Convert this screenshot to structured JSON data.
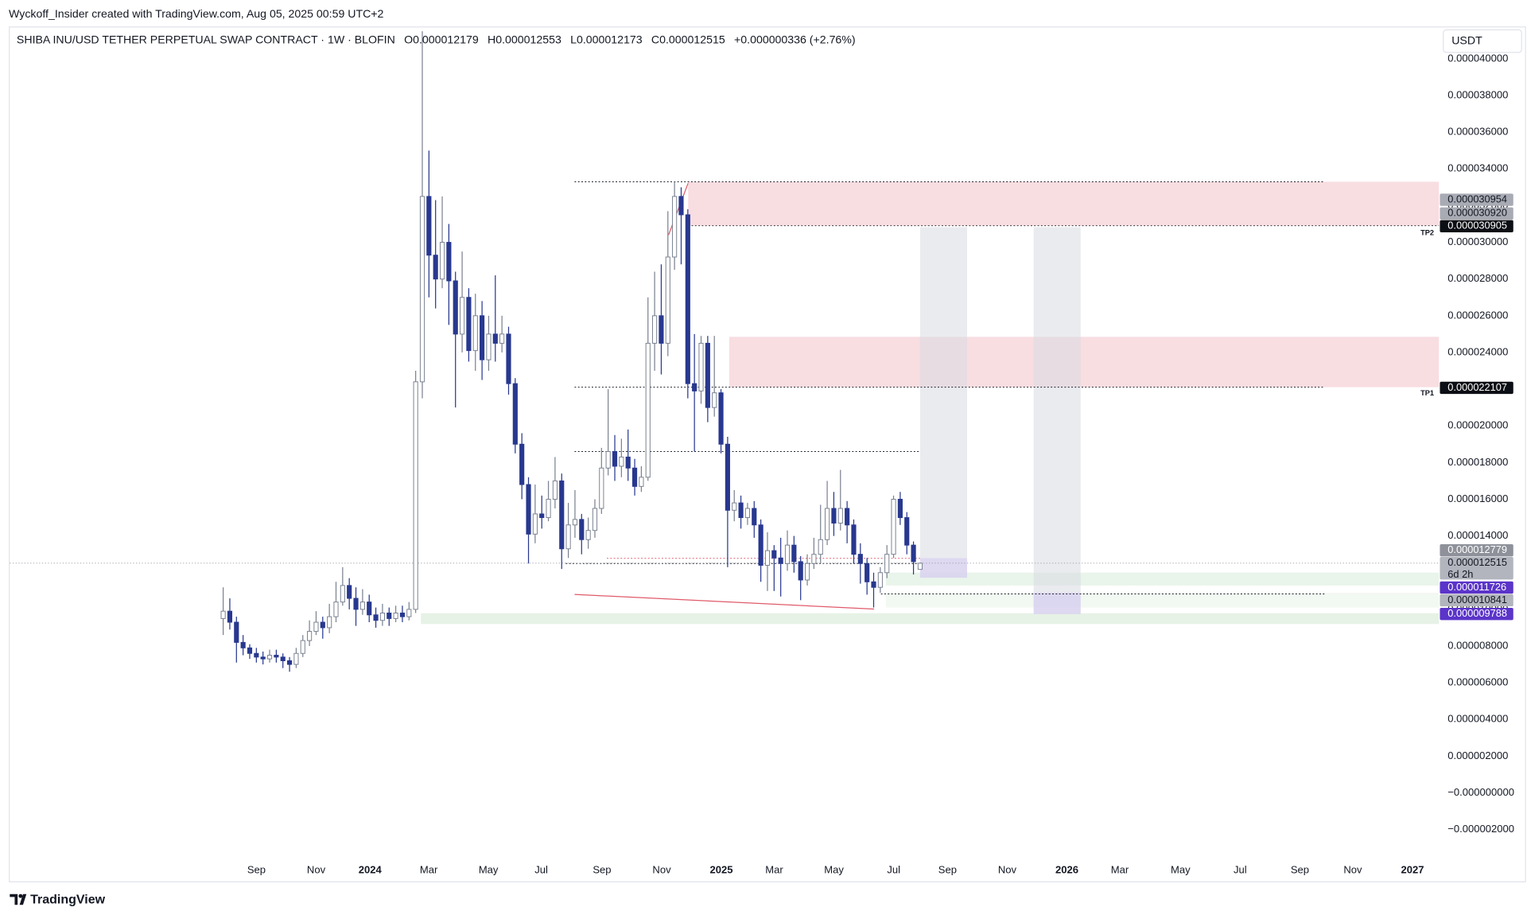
{
  "header": {
    "credit": "Wyckoff_Insider created with TradingView.com, Aug 05, 2025 00:59 UTC+2",
    "symbol": "SHIBA INU/USD TETHER PERPETUAL SWAP CONTRACT · 1W · BLOFIN",
    "ohlc_letters": [
      "O",
      "H",
      "L",
      "C"
    ],
    "ohlc_values": [
      "0.000012179",
      "0.000012553",
      "0.000012173",
      "0.000012515"
    ],
    "change": "+0.000000336 (+2.76%)",
    "currency": "USDT",
    "brand": "TradingView"
  },
  "chart_data": {
    "type": "candlestick",
    "up_color": "#ffffff",
    "up_border": "#7b8290",
    "down_color": "#28388f",
    "open": [
      9.5e-06,
      9.9e-06,
      9.3e-06,
      8.2e-06,
      7.9e-06,
      7.6e-06,
      7.4e-06,
      7.3e-06,
      7.5e-06,
      7.4e-06,
      7.2e-06,
      7e-06,
      7.6e-06,
      8.3e-06,
      8.8e-06,
      9.3e-06,
      9e-06,
      9.6e-06,
      1.04e-05,
      1.13e-05,
      1.06e-05,
      1e-05,
      1.04e-05,
      9.7e-06,
      9.4e-06,
      9.8e-06,
      9.5e-06,
      9.8e-06,
      9.6e-06,
      1e-05,
      2.24e-05,
      3.25e-05,
      2.93e-05,
      2.8e-05,
      3e-05,
      2.79e-05,
      2.5e-05,
      2.7e-05,
      2.41e-05,
      2.6e-05,
      2.36e-05,
      2.5e-05,
      2.45e-05,
      2.5e-05,
      2.23e-05,
      1.9e-05,
      1.68e-05,
      1.41e-05,
      1.52e-05,
      1.5e-05,
      1.6e-05,
      1.7e-05,
      1.33e-05,
      1.46e-05,
      1.49e-05,
      1.38e-05,
      1.43e-05,
      1.55e-05,
      1.77e-05,
      1.86e-05,
      1.78e-05,
      1.83e-05,
      1.77e-05,
      1.67e-05,
      1.72e-05,
      2.45e-05,
      2.6e-05,
      2.45e-05,
      2.92e-05,
      3.25e-05,
      3.15e-05,
      2.23e-05,
      2.19e-05,
      2.45e-05,
      2.1e-05,
      2.18e-05,
      1.9e-05,
      1.54e-05,
      1.58e-05,
      1.5e-05,
      1.55e-05,
      1.46e-05,
      1.24e-05,
      1.32e-05,
      1.28e-05,
      1.25e-05,
      1.35e-05,
      1.26e-05,
      1.16e-05,
      1.25e-05,
      1.3e-05,
      1.38e-05,
      1.55e-05,
      1.47e-05,
      1.55e-05,
      1.46e-05,
      1.3e-05,
      1.25e-05,
      1.15e-05,
      1.12e-05,
      1.2e-05,
      1.3e-05,
      1.6e-05,
      1.5e-05,
      1.35e-05,
      1.2179e-05
    ],
    "high": [
      1.12e-05,
      1.06e-05,
      9.6e-06,
      8.6e-06,
      8.1e-06,
      7.9e-06,
      7.7e-06,
      7.8e-06,
      7.8e-06,
      7.6e-06,
      7.4e-06,
      7.9e-06,
      8.6e-06,
      9.4e-06,
      9.9e-06,
      9.6e-06,
      1.03e-05,
      1.15e-05,
      1.23e-05,
      1.17e-05,
      1.12e-05,
      1.11e-05,
      1.08e-05,
      1.01e-05,
      1.03e-05,
      1.01e-05,
      1.02e-05,
      1.02e-05,
      1.04e-05,
      2.3e-05,
      4.15e-05,
      3.5e-05,
      3.23e-05,
      3.25e-05,
      3.1e-05,
      2.84e-05,
      2.95e-05,
      2.75e-05,
      2.72e-05,
      2.68e-05,
      2.6e-05,
      2.82e-05,
      2.6e-05,
      2.54e-05,
      2.26e-05,
      1.96e-05,
      1.72e-05,
      1.68e-05,
      1.62e-05,
      1.7e-05,
      1.83e-05,
      1.74e-05,
      1.58e-05,
      1.65e-05,
      1.52e-05,
      1.5e-05,
      1.6e-05,
      1.88e-05,
      2.2e-05,
      1.95e-05,
      1.93e-05,
      1.98e-05,
      1.82e-05,
      1.78e-05,
      2.7e-05,
      2.84e-05,
      2.88e-05,
      3.17e-05,
      3.33e-05,
      3.3e-05,
      3.18e-05,
      2.5e-05,
      2.49e-05,
      2.49e-05,
      2.49e-05,
      2.2e-05,
      1.94e-05,
      1.65e-05,
      1.62e-05,
      1.58e-05,
      1.59e-05,
      1.49e-05,
      1.42e-05,
      1.35e-05,
      1.39e-05,
      1.43e-05,
      1.4e-05,
      1.29e-05,
      1.3e-05,
      1.39e-05,
      1.57e-05,
      1.7e-05,
      1.64e-05,
      1.76e-05,
      1.59e-05,
      1.49e-05,
      1.36e-05,
      1.28e-05,
      1.2e-05,
      1.23e-05,
      1.35e-05,
      1.62e-05,
      1.64e-05,
      1.53e-05,
      1.37e-05,
      1.2553e-05
    ],
    "low": [
      8.6e-06,
      8.9e-06,
      7.1e-06,
      7.5e-06,
      7.3e-06,
      7.1e-06,
      7e-06,
      7.1e-06,
      7.1e-06,
      6.8e-06,
      6.6e-06,
      6.8e-06,
      7.4e-06,
      8e-06,
      8.6e-06,
      8.4e-06,
      8.7e-06,
      9.3e-06,
      1.02e-05,
      1e-05,
      9.1e-06,
      9.7e-06,
      9.3e-06,
      9e-06,
      9.1e-06,
      9.1e-06,
      9.3e-06,
      9.3e-06,
      9.4e-06,
      9.8e-06,
      2.15e-05,
      2.7e-05,
      2.64e-05,
      2.75e-05,
      2.55e-05,
      2.1e-05,
      2.4e-05,
      2.35e-05,
      2.3e-05,
      2.25e-05,
      2.3e-05,
      2.35e-05,
      2.4e-05,
      2.17e-05,
      1.85e-05,
      1.6e-05,
      1.25e-05,
      1.36e-05,
      1.44e-05,
      1.48e-05,
      1.55e-05,
      1.22e-05,
      1.28e-05,
      1.39e-05,
      1.3e-05,
      1.33e-05,
      1.39e-05,
      1.52e-05,
      1.73e-05,
      1.7e-05,
      1.72e-05,
      1.7e-05,
      1.62e-05,
      1.64e-05,
      1.7e-05,
      2.3e-05,
      2.28e-05,
      2.38e-05,
      2.85e-05,
      2.88e-05,
      2.15e-05,
      1.86e-05,
      2.12e-05,
      2.02e-05,
      2.05e-05,
      1.85e-05,
      1.23e-05,
      1.48e-05,
      1.44e-05,
      1.46e-05,
      1.39e-05,
      1.15e-05,
      1.1e-05,
      1.1e-05,
      1.07e-05,
      1.21e-05,
      1.2e-05,
      1.05e-05,
      1.13e-05,
      1.22e-05,
      1.25e-05,
      1.35e-05,
      1.4e-05,
      1.43e-05,
      1.36e-05,
      1.25e-05,
      1.14e-05,
      1.08e-05,
      1.01e-05,
      1.09e-05,
      1.17e-05,
      1.28e-05,
      1.46e-05,
      1.3e-05,
      1.19e-05,
      1.2173e-05
    ],
    "close": [
      9.9e-06,
      9.3e-06,
      8.2e-06,
      7.9e-06,
      7.6e-06,
      7.4e-06,
      7.3e-06,
      7.5e-06,
      7.4e-06,
      7.2e-06,
      7e-06,
      7.6e-06,
      8.3e-06,
      8.8e-06,
      9.3e-06,
      9e-06,
      9.6e-06,
      1.04e-05,
      1.13e-05,
      1.06e-05,
      1e-05,
      1.04e-05,
      9.7e-06,
      9.4e-06,
      9.8e-06,
      9.5e-06,
      9.8e-06,
      9.6e-06,
      1e-05,
      2.24e-05,
      3.25e-05,
      2.93e-05,
      2.8e-05,
      3e-05,
      2.79e-05,
      2.5e-05,
      2.7e-05,
      2.41e-05,
      2.6e-05,
      2.36e-05,
      2.5e-05,
      2.45e-05,
      2.5e-05,
      2.23e-05,
      1.9e-05,
      1.68e-05,
      1.41e-05,
      1.52e-05,
      1.5e-05,
      1.6e-05,
      1.7e-05,
      1.33e-05,
      1.46e-05,
      1.49e-05,
      1.38e-05,
      1.43e-05,
      1.55e-05,
      1.77e-05,
      1.86e-05,
      1.78e-05,
      1.83e-05,
      1.77e-05,
      1.67e-05,
      1.72e-05,
      2.45e-05,
      2.6e-05,
      2.45e-05,
      2.92e-05,
      3.25e-05,
      3.15e-05,
      2.23e-05,
      2.19e-05,
      2.45e-05,
      2.1e-05,
      2.18e-05,
      1.9e-05,
      1.54e-05,
      1.58e-05,
      1.5e-05,
      1.55e-05,
      1.46e-05,
      1.24e-05,
      1.32e-05,
      1.28e-05,
      1.25e-05,
      1.35e-05,
      1.26e-05,
      1.16e-05,
      1.25e-05,
      1.3e-05,
      1.38e-05,
      1.55e-05,
      1.47e-05,
      1.55e-05,
      1.46e-05,
      1.3e-05,
      1.25e-05,
      1.15e-05,
      1.12e-05,
      1.2e-05,
      1.3e-05,
      1.6e-05,
      1.5e-05,
      1.35e-05,
      1.26e-05,
      1.2515e-05
    ],
    "ylim": [
      -4.82e-06,
      4.187e-05
    ],
    "yticks": [
      {
        "value": 4e-05,
        "label": "0.000040000"
      },
      {
        "value": 3.8e-05,
        "label": "0.000038000"
      },
      {
        "value": 3.6e-05,
        "label": "0.000036000"
      },
      {
        "value": 3.4e-05,
        "label": "0.000034000"
      },
      {
        "value": 3.2e-05,
        "label": "0.000032000"
      },
      {
        "value": 3e-05,
        "label": "0.000030000"
      },
      {
        "value": 2.8e-05,
        "label": "0.000028000"
      },
      {
        "value": 2.6e-05,
        "label": "0.000026000"
      },
      {
        "value": 2.4e-05,
        "label": "0.000024000"
      },
      {
        "value": 2.2e-05,
        "label": "0.000022000"
      },
      {
        "value": 2e-05,
        "label": "0.000020000"
      },
      {
        "value": 1.8e-05,
        "label": "0.000018000"
      },
      {
        "value": 1.6e-05,
        "label": "0.000016000"
      },
      {
        "value": 1.4e-05,
        "label": "0.000014000"
      },
      {
        "value": 1.2e-05,
        "label": "0.000012000"
      },
      {
        "value": 1e-05,
        "label": "0.000010000"
      },
      {
        "value": 8e-06,
        "label": "0.000008000"
      },
      {
        "value": 6e-06,
        "label": "0.000006000"
      },
      {
        "value": 4e-06,
        "label": "0.000004000"
      },
      {
        "value": 2e-06,
        "label": "0.000002000"
      },
      {
        "value": 0,
        "label": "−0.000000000"
      },
      {
        "value": -2e-06,
        "label": "−0.000002000"
      }
    ],
    "grid": false,
    "x_labels": [
      "Sep",
      "Nov",
      "2024",
      "Mar",
      "May",
      "Jul",
      "Sep",
      "Nov",
      "2025",
      "Mar",
      "May",
      "Jul",
      "Sep",
      "Nov",
      "2026",
      "Mar",
      "May",
      "Jul",
      "Sep",
      "Nov",
      "2027"
    ],
    "zones": [
      {
        "top": 3.33e-05,
        "bottom": 3.0905e-05,
        "color": "#f8dde1"
      },
      {
        "top": 2.485e-05,
        "bottom": 2.2107e-05,
        "color": "#f8dde1"
      },
      {
        "top": 1.2e-05,
        "bottom": 1.13e-05,
        "color": "#e9f4ea"
      },
      {
        "top": 1.09e-05,
        "bottom": 1.01e-05,
        "color": "#f2f8f2"
      },
      {
        "top": 9.788e-06,
        "bottom": 9.2e-06,
        "color": "#e6f2e6"
      }
    ],
    "levels": [
      {
        "value": 3.33e-05,
        "color": "#131722"
      },
      {
        "value": 3.0905e-05,
        "color": "#131722"
      },
      {
        "value": 2.2107e-05,
        "color": "#131722"
      },
      {
        "value": 1.86e-05,
        "color": "#131722"
      },
      {
        "value": 1.2779e-05,
        "color": "#e05a6a"
      },
      {
        "value": 1.25e-05,
        "color": "#131722"
      },
      {
        "value": 1.0841e-05,
        "color": "#131722"
      }
    ],
    "current_price": 1.2515e-05,
    "price_labels": [
      {
        "value": 3.0954e-05,
        "label": "0.000030954",
        "color": "#a8abb3"
      },
      {
        "value": 3.092e-05,
        "label": "0.000030920",
        "color": "#a8abb3"
      },
      {
        "value": 3.0905e-05,
        "label": "0.000030905",
        "color": "#0b0e14"
      },
      {
        "value": 2.2107e-05,
        "label": "0.000022107",
        "color": "#0b0e14"
      },
      {
        "value": 1.2779e-05,
        "label": "0.000012779",
        "color": "#8e919a"
      },
      {
        "value": 1.2515e-05,
        "label": "0.000012515",
        "color": "#b2b5bd"
      },
      {
        "value": 1.1726e-05,
        "label": "0.000011726",
        "color": "#5b34c9"
      },
      {
        "value": 1.0841e-05,
        "label": "0.000010841",
        "color": "#b2b5bd"
      },
      {
        "value": 9.788e-06,
        "label": "0.000009788",
        "color": "#5b34c9"
      }
    ],
    "countdown": "6d 2h",
    "tp_labels": [
      "TP2",
      "TP1"
    ]
  }
}
